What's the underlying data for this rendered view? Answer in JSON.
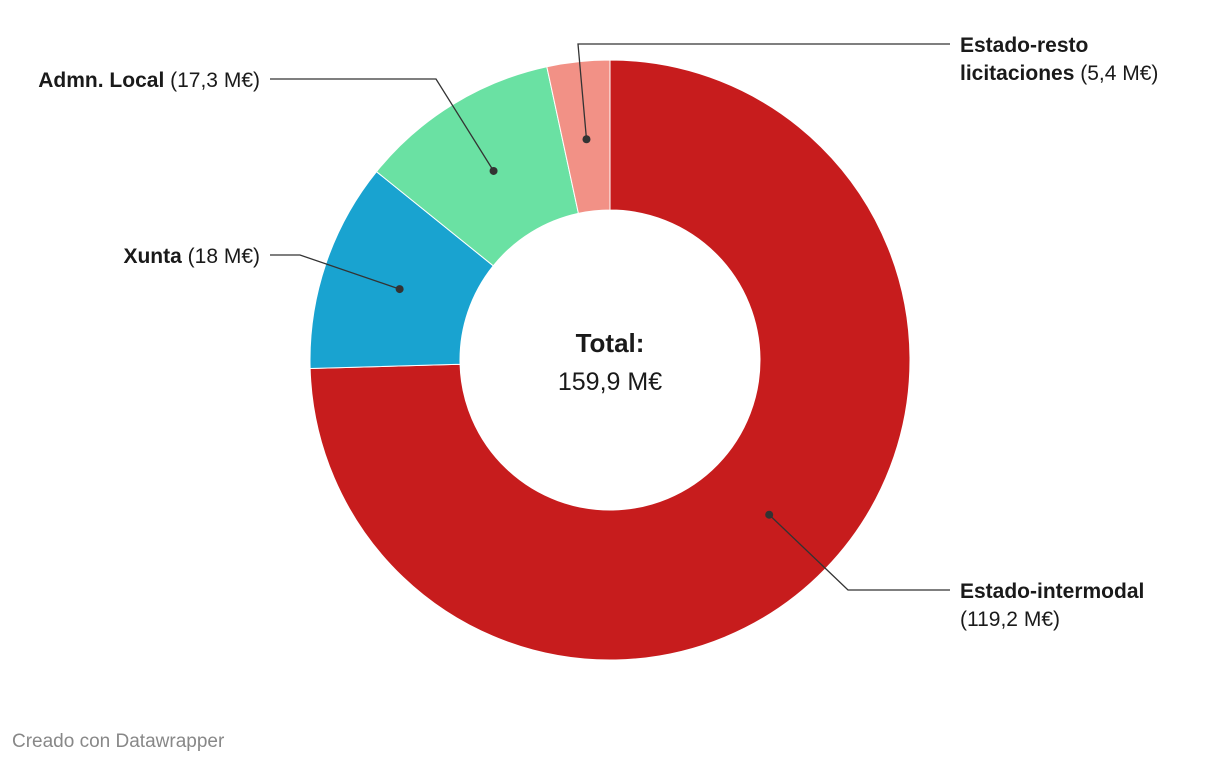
{
  "chart_data": {
    "type": "pie",
    "variant": "donut",
    "center": {
      "title": "Total:",
      "value": "159,9 M€"
    },
    "slices": [
      {
        "name": "Estado-intermodal",
        "value": 119.2,
        "value_label": "(119,2 M€)",
        "color": "#c71c1d"
      },
      {
        "name": "Xunta",
        "value": 18,
        "value_label": "(18 M€)",
        "color": "#19a3d0"
      },
      {
        "name": "Admn. Local",
        "value": 17.3,
        "value_label": "(17,3 M€)",
        "color": "#6ae1a3"
      },
      {
        "name": "Estado-resto licitaciones",
        "value": 5.4,
        "value_label": "(5,4 M€)",
        "color": "#f29186"
      }
    ]
  },
  "footer": {
    "credit": "Creado con Datawrapper"
  }
}
